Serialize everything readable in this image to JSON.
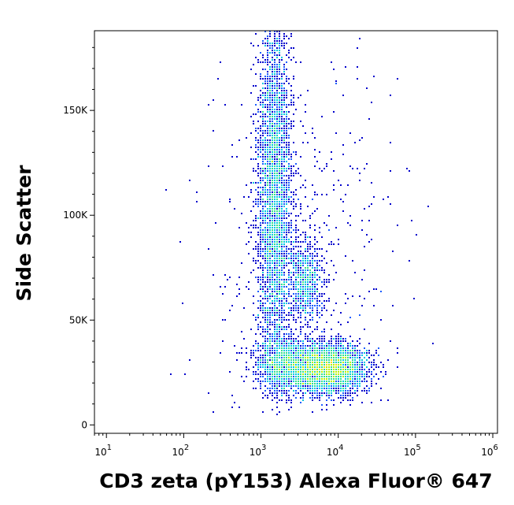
{
  "chart_data": {
    "type": "scatter",
    "plot_style": "density pseudocolor dot plot",
    "xlabel": "CD3 zeta (pY153) Alexa Fluor® 647",
    "ylabel": "Side Scatter",
    "x_scale": "log",
    "xlim": [
      7,
      1150000
    ],
    "ylim": [
      -4000,
      188000
    ],
    "x_ticks": [
      {
        "value": 10,
        "base": "10",
        "exp": "1"
      },
      {
        "value": 100,
        "base": "10",
        "exp": "2"
      },
      {
        "value": 1000,
        "base": "10",
        "exp": "3"
      },
      {
        "value": 10000,
        "base": "10",
        "exp": "4"
      },
      {
        "value": 100000,
        "base": "10",
        "exp": "5"
      },
      {
        "value": 1000000,
        "base": "10",
        "exp": "6"
      }
    ],
    "y_ticks": [
      {
        "value": 0,
        "label": "0"
      },
      {
        "value": 50000,
        "label": "50K"
      },
      {
        "value": 100000,
        "label": "100K"
      },
      {
        "value": 150000,
        "label": "150K"
      }
    ],
    "grid": false,
    "legend": "none",
    "density_colors": [
      "#0000cc",
      "#1a5cff",
      "#00c8e0",
      "#33e08c",
      "#b4f000",
      "#ffd800",
      "#ff7a00",
      "#e00000"
    ],
    "populations": [
      {
        "name": "",
        "x_center": 1500,
        "y_center": 110000,
        "x_spread_decades": 0.11,
        "y_spread": 45000,
        "y_min": 15000,
        "y_max": 188000,
        "weight": 0.4
      },
      {
        "name": "",
        "x_center": 3800,
        "y_center": 68000,
        "x_spread_decades": 0.12,
        "y_spread": 9000,
        "y_min": 30000,
        "y_max": 100000,
        "weight": 0.08
      },
      {
        "name": "",
        "x_center": 7500,
        "y_center": 27000,
        "x_spread_decades": 0.25,
        "y_spread": 6000,
        "y_min": 8000,
        "y_max": 45000,
        "weight": 0.33
      },
      {
        "name": "",
        "x_center": 2000,
        "y_center": 28000,
        "x_spread_decades": 0.2,
        "y_spread": 7000,
        "y_min": 8000,
        "y_max": 50000,
        "weight": 0.13
      },
      {
        "name": "",
        "x_center": 3000,
        "y_center": 80000,
        "x_spread_decades": 0.6,
        "y_spread": 50000,
        "y_min": 5000,
        "y_max": 188000,
        "weight": 0.06
      }
    ]
  }
}
